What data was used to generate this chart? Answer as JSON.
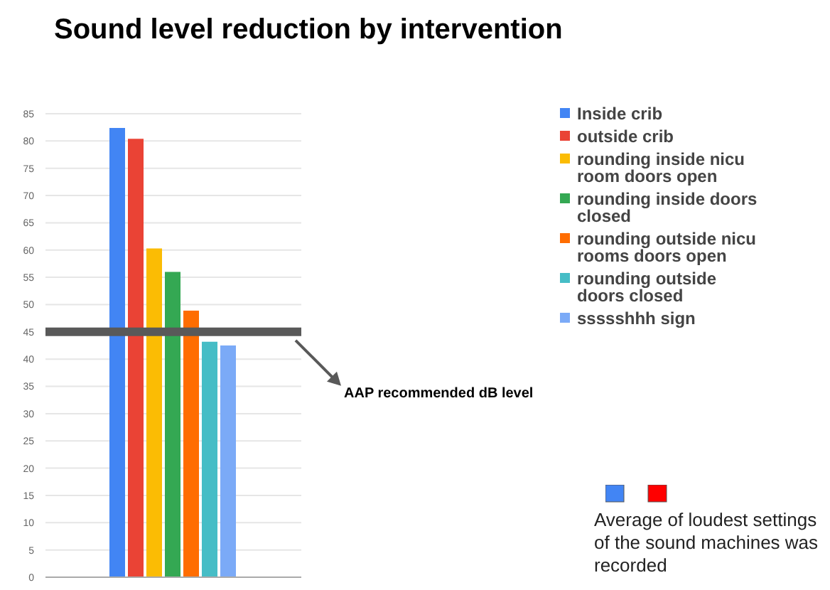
{
  "chart_data": {
    "type": "bar",
    "title": "Sound level reduction by intervention",
    "categories": [
      null
    ],
    "series": [
      {
        "name": "Inside crib",
        "color": "#4285f4",
        "values": [
          82.4
        ]
      },
      {
        "name": "outside crib",
        "color": "#ea4335",
        "values": [
          80.4
        ]
      },
      {
        "name": "rounding inside nicu room doors open",
        "color": "#fbbc04",
        "values": [
          60.3
        ]
      },
      {
        "name": "rounding inside doors closed",
        "color": "#34a853",
        "values": [
          56
        ]
      },
      {
        "name": "rounding outside nicu rooms doors open",
        "color": "#ff6d01",
        "values": [
          48.9
        ]
      },
      {
        "name": "rounding outside doors closed",
        "color": "#46bdc6",
        "values": [
          43.2
        ]
      },
      {
        "name": "ssssshhh sign",
        "color": "#7baaf7",
        "values": [
          42.5
        ]
      }
    ],
    "ylim": [
      0,
      85
    ],
    "yticks": [
      0,
      5,
      10,
      15,
      20,
      25,
      30,
      35,
      40,
      45,
      50,
      55,
      60,
      65,
      70,
      75,
      80,
      85
    ],
    "grid": "y",
    "legend": "right",
    "ref_lines": [
      {
        "axis": "y",
        "value": 45,
        "label": "AAP recommended dB level",
        "color": "#595959"
      }
    ],
    "annotations": [
      "Average of loudest settings of the sound machines was recorded"
    ]
  }
}
